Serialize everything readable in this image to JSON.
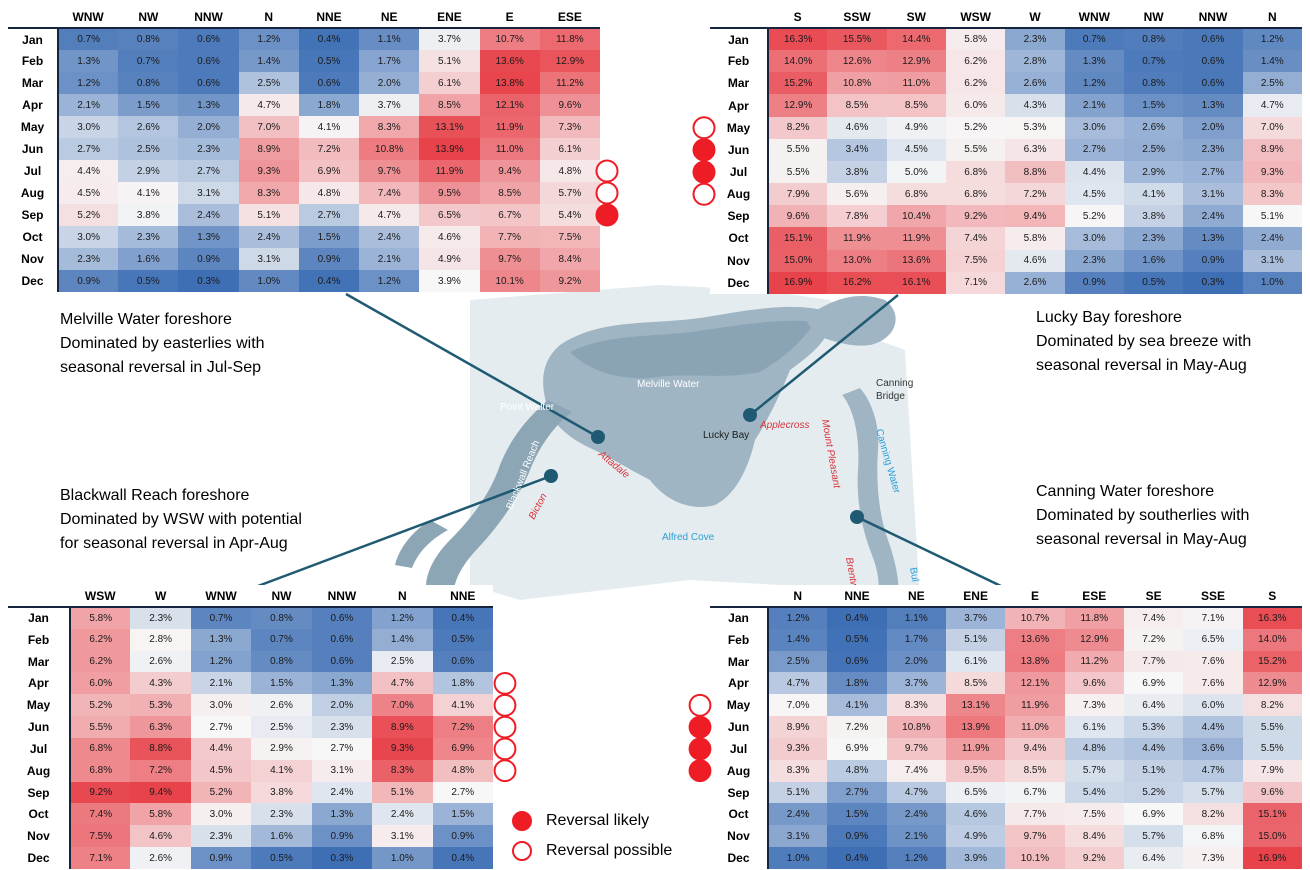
{
  "colors": {
    "low": "#3e6fb5",
    "mid": "#f7f7f7",
    "high": "#e8434b",
    "marker": "#ee1c25",
    "line": "#1f5a72",
    "water": "#9fb5c3",
    "land": "#dfe8ed"
  },
  "map_labels": {
    "melville_water": "Melville Water",
    "point_walter": "Point Walter",
    "blackwall_reach": "Blackwall Reach",
    "bicton": "Bicton",
    "attadale": "Attadale",
    "lucky_bay": "Lucky Bay",
    "applecross": "Applecross",
    "alfred_cove": "Alfred Cove",
    "canning_bridge": "Canning Bridge",
    "canning_water": "Canning Water",
    "mount_pleasant": "Mount Pleasant",
    "brentwood": "Brentw",
    "bull_creek": "Bul Cr"
  },
  "legend": {
    "likely": "Reversal likely",
    "possible": "Reversal possible"
  },
  "chart_data": [
    {
      "type": "heatmap",
      "location": "melville",
      "caption": [
        "Melville Water foreshore",
        "Dominated by easterlies with",
        "seasonal reversal in Jul-Sep"
      ],
      "columns": [
        "WNW",
        "NW",
        "NNW",
        "N",
        "NNE",
        "NE",
        "ENE",
        "E",
        "ESE"
      ],
      "rows": [
        "Jan",
        "Feb",
        "Mar",
        "Apr",
        "May",
        "Jun",
        "Jul",
        "Aug",
        "Sep",
        "Oct",
        "Nov",
        "Dec"
      ],
      "values": [
        [
          0.7,
          0.8,
          0.6,
          1.2,
          0.4,
          1.1,
          3.7,
          10.7,
          11.8
        ],
        [
          1.3,
          0.7,
          0.6,
          1.4,
          0.5,
          1.7,
          5.1,
          13.6,
          12.9
        ],
        [
          1.2,
          0.8,
          0.6,
          2.5,
          0.6,
          2.0,
          6.1,
          13.8,
          11.2
        ],
        [
          2.1,
          1.5,
          1.3,
          4.7,
          1.8,
          3.7,
          8.5,
          12.1,
          9.6
        ],
        [
          3.0,
          2.6,
          2.0,
          7.0,
          4.1,
          8.3,
          13.1,
          11.9,
          7.3
        ],
        [
          2.7,
          2.5,
          2.3,
          8.9,
          7.2,
          10.8,
          13.9,
          11.0,
          6.1
        ],
        [
          4.4,
          2.9,
          2.7,
          9.3,
          6.9,
          9.7,
          11.9,
          9.4,
          4.8
        ],
        [
          4.5,
          4.1,
          3.1,
          8.3,
          4.8,
          7.4,
          9.5,
          8.5,
          5.7
        ],
        [
          5.2,
          3.8,
          2.4,
          5.1,
          2.7,
          4.7,
          6.5,
          6.7,
          5.4
        ],
        [
          3.0,
          2.3,
          1.3,
          2.4,
          1.5,
          2.4,
          4.6,
          7.7,
          7.5
        ],
        [
          2.3,
          1.6,
          0.9,
          3.1,
          0.9,
          2.1,
          4.9,
          9.7,
          8.4
        ],
        [
          0.9,
          0.5,
          0.3,
          1.0,
          0.4,
          1.2,
          3.9,
          10.1,
          9.2
        ]
      ],
      "markers": {
        "Jul": "possible",
        "Aug": "possible",
        "Sep": "likely"
      }
    },
    {
      "type": "heatmap",
      "location": "lucky",
      "caption": [
        "Lucky Bay foreshore",
        "Dominated by sea breeze with",
        "seasonal reversal in May-Aug"
      ],
      "columns": [
        "S",
        "SSW",
        "SW",
        "WSW",
        "W",
        "WNW",
        "NW",
        "NNW",
        "N"
      ],
      "rows": [
        "Jan",
        "Feb",
        "Mar",
        "Apr",
        "May",
        "Jun",
        "Jul",
        "Aug",
        "Sep",
        "Oct",
        "Nov",
        "Dec"
      ],
      "values": [
        [
          16.3,
          15.5,
          14.4,
          5.8,
          2.3,
          0.7,
          0.8,
          0.6,
          1.2
        ],
        [
          14.0,
          12.6,
          12.9,
          6.2,
          2.8,
          1.3,
          0.7,
          0.6,
          1.4
        ],
        [
          15.2,
          10.8,
          11.0,
          6.2,
          2.6,
          1.2,
          0.8,
          0.6,
          2.5
        ],
        [
          12.9,
          8.5,
          8.5,
          6.0,
          4.3,
          2.1,
          1.5,
          1.3,
          4.7
        ],
        [
          8.2,
          4.6,
          4.9,
          5.2,
          5.3,
          3.0,
          2.6,
          2.0,
          7.0
        ],
        [
          5.5,
          3.4,
          4.5,
          5.5,
          6.3,
          2.7,
          2.5,
          2.3,
          8.9
        ],
        [
          5.5,
          3.8,
          5.0,
          6.8,
          8.8,
          4.4,
          2.9,
          2.7,
          9.3
        ],
        [
          7.9,
          5.6,
          6.8,
          6.8,
          7.2,
          4.5,
          4.1,
          3.1,
          8.3
        ],
        [
          9.6,
          7.8,
          10.4,
          9.2,
          9.4,
          5.2,
          3.8,
          2.4,
          5.1
        ],
        [
          15.1,
          11.9,
          11.9,
          7.4,
          5.8,
          3.0,
          2.3,
          1.3,
          2.4
        ],
        [
          15.0,
          13.0,
          13.6,
          7.5,
          4.6,
          2.3,
          1.6,
          0.9,
          3.1
        ],
        [
          16.9,
          16.2,
          16.1,
          7.1,
          2.6,
          0.9,
          0.5,
          0.3,
          1.0
        ]
      ],
      "markers": {
        "May": "possible",
        "Jun": "likely",
        "Jul": "likely",
        "Aug": "possible"
      }
    },
    {
      "type": "heatmap",
      "location": "blackwall",
      "caption": [
        "Blackwall Reach foreshore",
        "Dominated by WSW with potential",
        "for seasonal reversal in Apr-Aug"
      ],
      "columns": [
        "WSW",
        "W",
        "WNW",
        "NW",
        "NNW",
        "N",
        "NNE"
      ],
      "rows": [
        "Jan",
        "Feb",
        "Mar",
        "Apr",
        "May",
        "Jun",
        "Jul",
        "Aug",
        "Sep",
        "Oct",
        "Nov",
        "Dec"
      ],
      "values": [
        [
          5.8,
          2.3,
          0.7,
          0.8,
          0.6,
          1.2,
          0.4
        ],
        [
          6.2,
          2.8,
          1.3,
          0.7,
          0.6,
          1.4,
          0.5
        ],
        [
          6.2,
          2.6,
          1.2,
          0.8,
          0.6,
          2.5,
          0.6
        ],
        [
          6.0,
          4.3,
          2.1,
          1.5,
          1.3,
          4.7,
          1.8
        ],
        [
          5.2,
          5.3,
          3.0,
          2.6,
          2.0,
          7.0,
          4.1
        ],
        [
          5.5,
          6.3,
          2.7,
          2.5,
          2.3,
          8.9,
          7.2
        ],
        [
          6.8,
          8.8,
          4.4,
          2.9,
          2.7,
          9.3,
          6.9
        ],
        [
          6.8,
          7.2,
          4.5,
          4.1,
          3.1,
          8.3,
          4.8
        ],
        [
          9.2,
          9.4,
          5.2,
          3.8,
          2.4,
          5.1,
          2.7
        ],
        [
          7.4,
          5.8,
          3.0,
          2.3,
          1.3,
          2.4,
          1.5
        ],
        [
          7.5,
          4.6,
          2.3,
          1.6,
          0.9,
          3.1,
          0.9
        ],
        [
          7.1,
          2.6,
          0.9,
          0.5,
          0.3,
          1.0,
          0.4
        ]
      ],
      "markers": {
        "Apr": "possible",
        "May": "possible",
        "Jun": "possible",
        "Jul": "possible",
        "Aug": "possible"
      }
    },
    {
      "type": "heatmap",
      "location": "canning",
      "caption": [
        "Canning Water foreshore",
        "Dominated by southerlies with",
        "seasonal reversal in May-Aug"
      ],
      "columns": [
        "N",
        "NNE",
        "NE",
        "ENE",
        "E",
        "ESE",
        "SE",
        "SSE",
        "S"
      ],
      "rows": [
        "Jan",
        "Feb",
        "Mar",
        "Apr",
        "May",
        "Jun",
        "Jul",
        "Aug",
        "Sep",
        "Oct",
        "Nov",
        "Dec"
      ],
      "values": [
        [
          1.2,
          0.4,
          1.1,
          3.7,
          10.7,
          11.8,
          7.4,
          7.1,
          16.3
        ],
        [
          1.4,
          0.5,
          1.7,
          5.1,
          13.6,
          12.9,
          7.2,
          6.5,
          14.0
        ],
        [
          2.5,
          0.6,
          2.0,
          6.1,
          13.8,
          11.2,
          7.7,
          7.6,
          15.2
        ],
        [
          4.7,
          1.8,
          3.7,
          8.5,
          12.1,
          9.6,
          6.9,
          7.6,
          12.9
        ],
        [
          7.0,
          4.1,
          8.3,
          13.1,
          11.9,
          7.3,
          6.4,
          6.0,
          8.2
        ],
        [
          8.9,
          7.2,
          10.8,
          13.9,
          11.0,
          6.1,
          5.3,
          4.4,
          5.5
        ],
        [
          9.3,
          6.9,
          9.7,
          11.9,
          9.4,
          4.8,
          4.4,
          3.6,
          5.5
        ],
        [
          8.3,
          4.8,
          7.4,
          9.5,
          8.5,
          5.7,
          5.1,
          4.7,
          7.9
        ],
        [
          5.1,
          2.7,
          4.7,
          6.5,
          6.7,
          5.4,
          5.2,
          5.7,
          9.6
        ],
        [
          2.4,
          1.5,
          2.4,
          4.6,
          7.7,
          7.5,
          6.9,
          8.2,
          15.1
        ],
        [
          3.1,
          0.9,
          2.1,
          4.9,
          9.7,
          8.4,
          5.7,
          6.8,
          15.0
        ],
        [
          1.0,
          0.4,
          1.2,
          3.9,
          10.1,
          9.2,
          6.4,
          7.3,
          16.9
        ]
      ],
      "markers": {
        "May": "possible",
        "Jun": "likely",
        "Jul": "likely",
        "Aug": "likely"
      }
    }
  ]
}
